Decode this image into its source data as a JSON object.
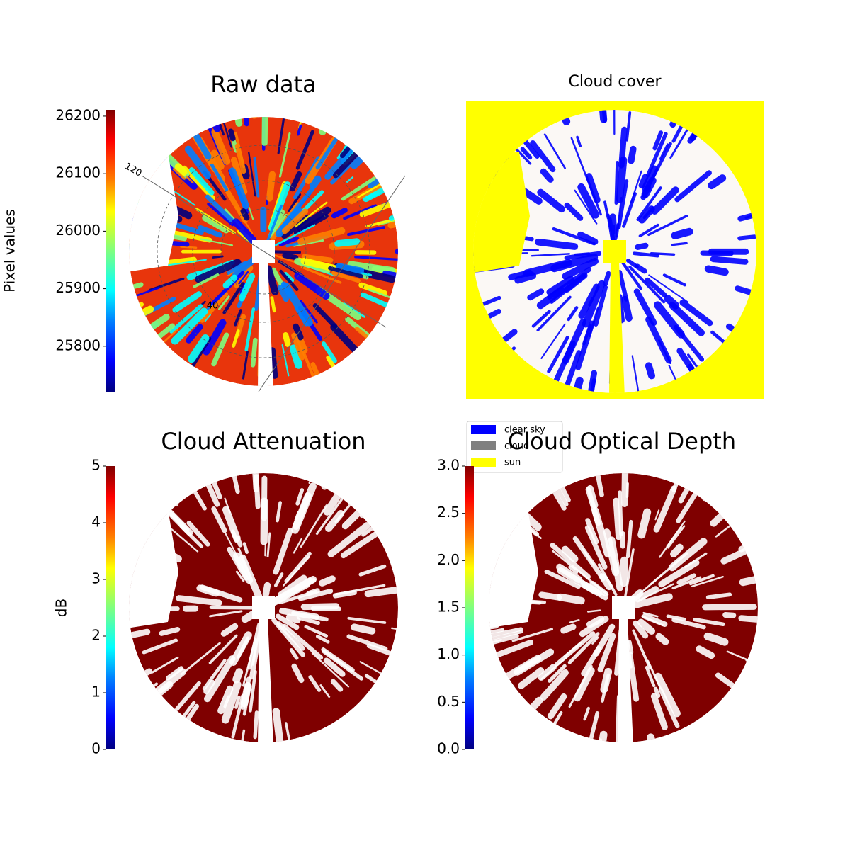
{
  "chart_data": [
    {
      "type": "image",
      "title": "Raw data",
      "annotations": [
        "120",
        "40"
      ],
      "colorbar": {
        "label": "Pixel values",
        "colormap": "jet",
        "lim": [
          25721,
          26211
        ],
        "ticks": [
          25800,
          25900,
          26000,
          26100,
          26200
        ]
      }
    },
    {
      "type": "image",
      "title": "Cloud cover",
      "legend": {
        "loc": "lower left",
        "entries": [
          {
            "name": "clear sky",
            "color": "#0000ff"
          },
          {
            "name": "cloud",
            "color": "#808080"
          },
          {
            "name": "sun",
            "color": "#ffff00"
          }
        ]
      }
    },
    {
      "type": "image",
      "title": "Cloud Attenuation",
      "colorbar": {
        "label": "dB",
        "colormap": "jet",
        "lim": [
          0,
          5
        ],
        "ticks": [
          0,
          1,
          2,
          3,
          4,
          5
        ]
      }
    },
    {
      "type": "image",
      "title": "Cloud Optical Depth",
      "colorbar": {
        "colormap": "jet",
        "lim": [
          0,
          3
        ],
        "ticks": [
          {
            "value": 0,
            "label": "0.0"
          },
          {
            "value": 0.5,
            "label": "0.5"
          },
          {
            "value": 1,
            "label": "1.0"
          },
          {
            "value": 1.5,
            "label": "1.5"
          },
          {
            "value": 2,
            "label": "2.0"
          },
          {
            "value": 2.5,
            "label": "2.5"
          },
          {
            "value": 3,
            "label": "3.0"
          }
        ]
      }
    }
  ]
}
